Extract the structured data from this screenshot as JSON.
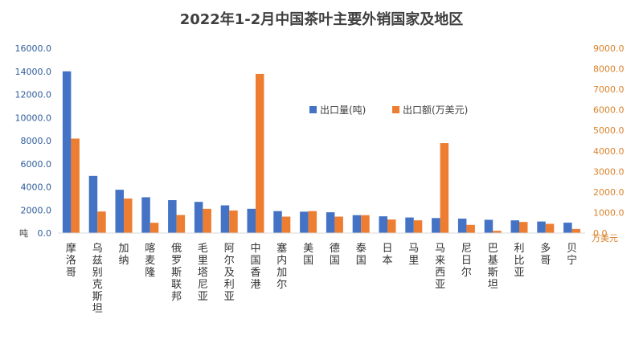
{
  "chart_data": {
    "type": "bar",
    "title": "2022年1-2月中国茶叶主要外销国家及地区",
    "categories": [
      "摩洛哥",
      "乌兹别克斯坦",
      "加纳",
      "喀麦隆",
      "俄罗斯联邦",
      "毛里塔尼亚",
      "阿尔及利亚",
      "中国香港",
      "塞内加尔",
      "美国",
      "德国",
      "泰国",
      "日本",
      "马里",
      "马来西亚",
      "尼日尔",
      "巴基斯坦",
      "利比亚",
      "多哥",
      "贝宁"
    ],
    "series": [
      {
        "name": "出口量(吨)",
        "axis": "left",
        "color": "#4472c4",
        "values": [
          14000,
          4950,
          3750,
          3100,
          2850,
          2700,
          2400,
          2100,
          1900,
          1850,
          1800,
          1550,
          1450,
          1350,
          1300,
          1250,
          1150,
          1100,
          1000,
          900
        ]
      },
      {
        "name": "出口额(万美元)",
        "axis": "right",
        "color": "#ed7d31",
        "values": [
          4600,
          1050,
          1680,
          500,
          880,
          1180,
          1100,
          7750,
          800,
          1070,
          800,
          870,
          660,
          620,
          4380,
          400,
          110,
          540,
          450,
          200
        ]
      }
    ],
    "y_left": {
      "unit": "吨",
      "min": 0,
      "max": 16000,
      "ticks": [
        "0.0",
        "2000.0",
        "4000.0",
        "6000.0",
        "8000.0",
        "10000.0",
        "12000.0",
        "14000.0",
        "16000.0"
      ]
    },
    "y_right": {
      "unit": "万美元",
      "min": 0,
      "max": 9000,
      "ticks": [
        "0.0",
        "1000.0",
        "2000.0",
        "3000.0",
        "4000.0",
        "5000.0",
        "6000.0",
        "7000.0",
        "8000.0",
        "9000.0"
      ]
    },
    "legend_position": "top-center",
    "grid": false
  }
}
